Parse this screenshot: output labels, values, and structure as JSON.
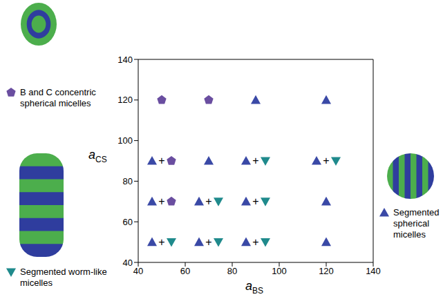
{
  "chart_data": {
    "type": "scatter",
    "x_label": "aBS",
    "y_label": "aCS",
    "xlim": [
      40,
      140
    ],
    "ylim": [
      40,
      140
    ],
    "xticks": [
      40,
      60,
      80,
      100,
      120,
      140
    ],
    "yticks": [
      40,
      60,
      80,
      100,
      120,
      140
    ],
    "grid": false,
    "legend": "outside",
    "mixed_label": "+",
    "series": [
      {
        "name": "Segmented spherical micelles",
        "color": "#3a49a6",
        "marker": "triangle",
        "x": [
          90,
          120,
          50,
          70,
          90,
          120,
          50,
          70,
          90,
          120,
          50,
          70,
          90,
          120
        ],
        "y": [
          120,
          120,
          90,
          90,
          90,
          90,
          70,
          70,
          70,
          70,
          50,
          50,
          50,
          50
        ]
      },
      {
        "name": "Segmented worm-like micelles",
        "color": "#1f8a8c",
        "marker": "triangle-down",
        "x": [
          90,
          120,
          70,
          90,
          50,
          70,
          90
        ],
        "y": [
          90,
          90,
          70,
          70,
          50,
          50,
          50
        ]
      },
      {
        "name": "B and C concentric spherical micelles",
        "color": "#6a4ea0",
        "marker": "pentagon",
        "x": [
          50,
          70,
          50,
          50
        ],
        "y": [
          120,
          120,
          90,
          70
        ]
      }
    ]
  }
}
